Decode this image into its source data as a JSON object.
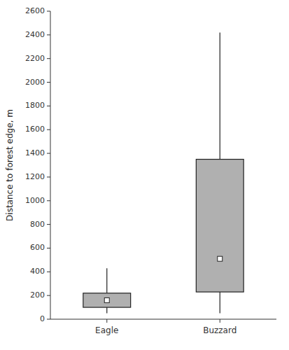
{
  "chart_data": {
    "type": "box",
    "ylabel": "Distance to forest edge, m",
    "categories": [
      "Eagle",
      "Buzzard"
    ],
    "q1": [
      100,
      230
    ],
    "median": [
      160,
      510
    ],
    "q3": [
      220,
      1350
    ],
    "whisker_low": [
      50,
      50
    ],
    "whisker_high": [
      430,
      2420
    ],
    "color": "#b0b0b0",
    "ylim": [
      0,
      2600
    ],
    "yticks": [
      0,
      200,
      400,
      600,
      800,
      1000,
      1200,
      1400,
      1600,
      1800,
      2000,
      2200,
      2400,
      2600
    ],
    "grid": false
  }
}
